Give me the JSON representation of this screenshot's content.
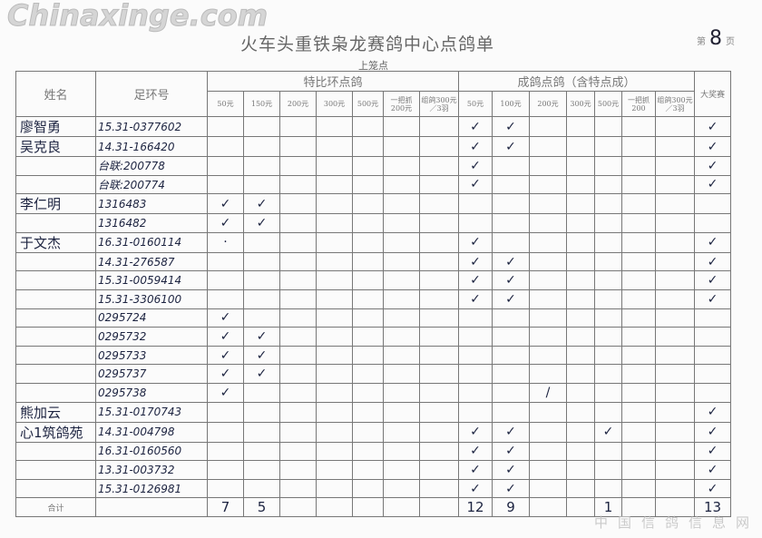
{
  "title": "火车头重铁枭龙赛鸽中心点鸽单",
  "page": {
    "prefix": "第",
    "number": "8",
    "suffix": "页"
  },
  "subtitle": "上笼点",
  "headers": {
    "name": "姓名",
    "ring": "足环号",
    "group1": "特比环点鸽",
    "group2": "成鸽点鸽（含特点成）",
    "grand_prize": "大奖赛",
    "group1_cols": [
      "50元",
      "150元",
      "200元",
      "300元",
      "500元",
      "一把抓200元",
      "组鸽300元／3羽"
    ],
    "group2_cols": [
      "50元",
      "100元",
      "200元",
      "300元",
      "500元",
      "一把抓200",
      "组鸽300元／3羽"
    ]
  },
  "rows": [
    {
      "name": "廖智勇",
      "ring": "15.31-0377602",
      "marks": [
        "",
        "",
        "",
        "",
        "",
        "",
        "",
        "✓",
        "✓",
        "",
        "",
        "",
        "",
        "",
        "✓"
      ]
    },
    {
      "name": "吴克良",
      "ring": "14.31-166420",
      "marks": [
        "",
        "",
        "",
        "",
        "",
        "",
        "",
        "✓",
        "✓",
        "",
        "",
        "",
        "",
        "",
        "✓"
      ]
    },
    {
      "name": "",
      "ring": "台联:200778",
      "marks": [
        "",
        "",
        "",
        "",
        "",
        "",
        "",
        "✓",
        "",
        "",
        "",
        "",
        "",
        "",
        "✓"
      ]
    },
    {
      "name": "",
      "ring": "台联:200774",
      "marks": [
        "",
        "",
        "",
        "",
        "",
        "",
        "",
        "✓",
        "",
        "",
        "",
        "",
        "",
        "",
        "✓"
      ]
    },
    {
      "name": "李仁明",
      "ring": "1316483",
      "marks": [
        "✓",
        "✓",
        "",
        "",
        "",
        "",
        "",
        "",
        "",
        "",
        "",
        "",
        "",
        "",
        ""
      ]
    },
    {
      "name": "",
      "ring": "1316482",
      "marks": [
        "✓",
        "✓",
        "",
        "",
        "",
        "",
        "",
        "",
        "",
        "",
        "",
        "",
        "",
        "",
        ""
      ]
    },
    {
      "name": "于文杰",
      "ring": "16.31-0160114",
      "marks": [
        "·",
        "",
        "",
        "",
        "",
        "",
        "",
        "✓",
        "",
        "",
        "",
        "",
        "",
        "",
        "✓"
      ]
    },
    {
      "name": "",
      "ring": "14.31-276587",
      "marks": [
        "",
        "",
        "",
        "",
        "",
        "",
        "",
        "✓",
        "✓",
        "",
        "",
        "",
        "",
        "",
        "✓"
      ]
    },
    {
      "name": "",
      "ring": "15.31-0059414",
      "marks": [
        "",
        "",
        "",
        "",
        "",
        "",
        "",
        "✓",
        "✓",
        "",
        "",
        "",
        "",
        "",
        "✓"
      ]
    },
    {
      "name": "",
      "ring": "15.31-3306100",
      "marks": [
        "",
        "",
        "",
        "",
        "",
        "",
        "",
        "✓",
        "✓",
        "",
        "",
        "",
        "",
        "",
        "✓"
      ]
    },
    {
      "name": "",
      "ring": "0295724",
      "marks": [
        "✓",
        "",
        "",
        "",
        "",
        "",
        "",
        "",
        "",
        "",
        "",
        "",
        "",
        "",
        ""
      ]
    },
    {
      "name": "",
      "ring": "0295732",
      "marks": [
        "✓",
        "✓",
        "",
        "",
        "",
        "",
        "",
        "",
        "",
        "",
        "",
        "",
        "",
        "",
        ""
      ]
    },
    {
      "name": "",
      "ring": "0295733",
      "marks": [
        "✓",
        "✓",
        "",
        "",
        "",
        "",
        "",
        "",
        "",
        "",
        "",
        "",
        "",
        "",
        ""
      ]
    },
    {
      "name": "",
      "ring": "0295737",
      "marks": [
        "✓",
        "✓",
        "",
        "",
        "",
        "",
        "",
        "",
        "",
        "",
        "",
        "",
        "",
        "",
        ""
      ]
    },
    {
      "name": "",
      "ring": "0295738",
      "marks": [
        "✓",
        "",
        "",
        "",
        "",
        "",
        "",
        "",
        "",
        "/",
        "",
        "",
        "",
        "",
        ""
      ]
    },
    {
      "name": "熊加云",
      "ring": "15.31-0170743",
      "marks": [
        "",
        "",
        "",
        "",
        "",
        "",
        "",
        "",
        "",
        "",
        "",
        "",
        "",
        "",
        "✓"
      ]
    },
    {
      "name": "心1筑鸽苑",
      "ring": "14.31-004798",
      "marks": [
        "",
        "",
        "",
        "",
        "",
        "",
        "",
        "✓",
        "✓",
        "",
        "",
        "✓",
        "",
        "",
        "✓"
      ]
    },
    {
      "name": "",
      "ring": "16.31-0160560",
      "marks": [
        "",
        "",
        "",
        "",
        "",
        "",
        "",
        "✓",
        "✓",
        "",
        "",
        "",
        "",
        "",
        "✓"
      ]
    },
    {
      "name": "",
      "ring": "13.31-003732",
      "marks": [
        "",
        "",
        "",
        "",
        "",
        "",
        "",
        "✓",
        "✓",
        "",
        "",
        "",
        "",
        "",
        "✓"
      ]
    },
    {
      "name": "",
      "ring": "15.31-0126981",
      "marks": [
        "",
        "",
        "",
        "",
        "",
        "",
        "",
        "✓",
        "✓",
        "",
        "",
        "",
        "",
        "",
        "✓"
      ]
    }
  ],
  "total": {
    "label": "合计",
    "values": [
      "7",
      "5",
      "",
      "",
      "",
      "",
      "",
      "12",
      "9",
      "",
      "",
      "1",
      "",
      "",
      "13"
    ]
  },
  "watermark": {
    "text": "Chinaxinge.com",
    "subtext": "中国信鸽信息网"
  }
}
